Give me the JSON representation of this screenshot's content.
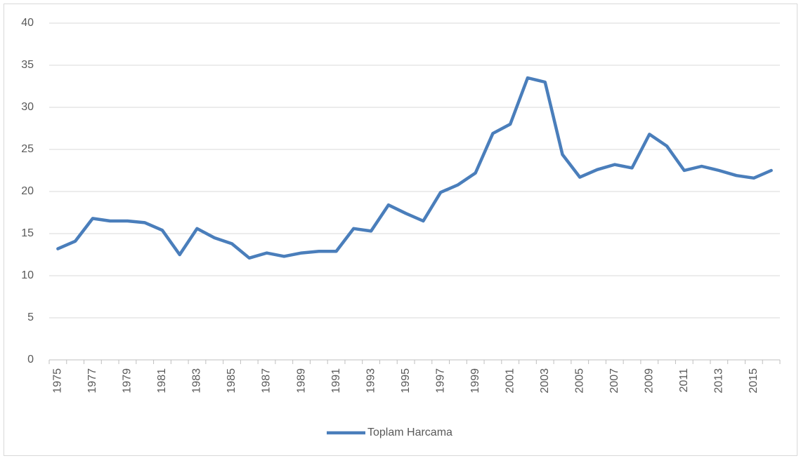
{
  "chart_data": {
    "type": "line",
    "categories": [
      "1975",
      null,
      "1977",
      null,
      "1979",
      null,
      "1981",
      null,
      "1983",
      null,
      "1985",
      null,
      "1987",
      null,
      "1989",
      null,
      "1991",
      null,
      "1993",
      null,
      "1995",
      null,
      "1997",
      null,
      "1999",
      null,
      "2001",
      null,
      "2003",
      null,
      "2005",
      null,
      "2007",
      null,
      "2009",
      null,
      "2011",
      null,
      "2013",
      null,
      "2015",
      null
    ],
    "series": [
      {
        "name": "Toplam Harcama",
        "color": "#4a7ebb",
        "values": [
          13.2,
          14.1,
          16.8,
          16.5,
          16.5,
          16.3,
          15.4,
          12.5,
          15.6,
          14.5,
          13.8,
          12.1,
          12.7,
          12.3,
          12.7,
          12.9,
          12.9,
          15.6,
          15.3,
          18.4,
          17.4,
          16.5,
          19.9,
          20.8,
          22.2,
          26.9,
          28.0,
          33.5,
          33.0,
          24.4,
          21.7,
          22.6,
          23.2,
          22.8,
          26.8,
          25.4,
          22.5,
          23.0,
          22.5,
          21.9,
          21.6,
          22.5
        ]
      }
    ],
    "ylim": [
      0,
      40
    ],
    "yticks": [
      0,
      5,
      10,
      15,
      20,
      25,
      30,
      35,
      40
    ],
    "grid": true,
    "legend": "bottom"
  }
}
